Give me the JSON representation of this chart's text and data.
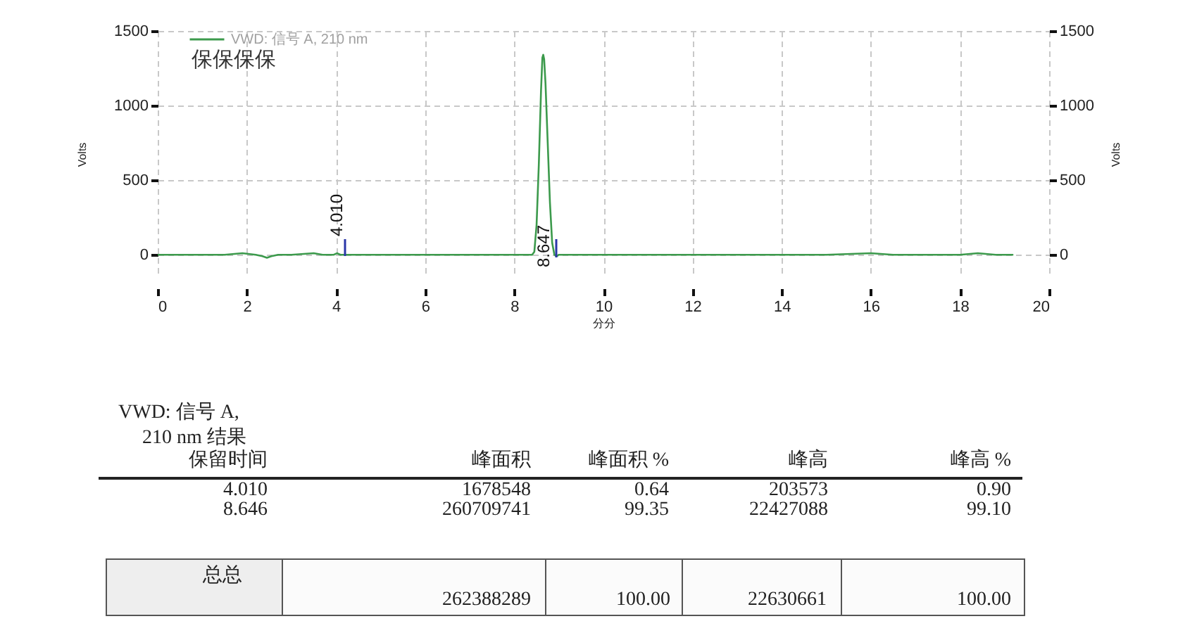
{
  "chart_data": {
    "type": "line",
    "xlabel": "分分",
    "ylabel": "Volts",
    "y2label": "Volts",
    "x": [
      0,
      0.5,
      1,
      1.5,
      1.9,
      2.2,
      2.35,
      2.45,
      2.55,
      2.7,
      3,
      3.5,
      3.7,
      3.95,
      4.02,
      4.1,
      4.5,
      5,
      6,
      7,
      8,
      8.3,
      8.4,
      8.45,
      8.5,
      8.55,
      8.6,
      8.63,
      8.65,
      8.67,
      8.7,
      8.75,
      8.8,
      8.85,
      8.9,
      8.95,
      9,
      9.5,
      10,
      11,
      12,
      13,
      14,
      15,
      16,
      16.5,
      17,
      17.5,
      18,
      18.4,
      18.8,
      19.18
    ],
    "series": [
      {
        "name": "VWD: 信号 A, 210 nm",
        "color": "#3c9a4c",
        "values": [
          0,
          0,
          0,
          0,
          10,
          0,
          -10,
          -20,
          -10,
          0,
          0,
          10,
          0,
          0,
          10,
          0,
          0,
          0,
          0,
          0,
          0,
          0,
          0,
          20,
          200,
          600,
          1100,
          1320,
          1340,
          1310,
          1150,
          750,
          350,
          80,
          0,
          -10,
          0,
          0,
          0,
          0,
          0,
          0,
          0,
          0,
          10,
          0,
          0,
          0,
          0,
          10,
          0,
          0
        ]
      }
    ],
    "xlim": [
      0,
      20
    ],
    "xticks": [
      0,
      2,
      4,
      6,
      8,
      10,
      12,
      14,
      16,
      18,
      20
    ],
    "ylim": [
      -150,
      1500
    ],
    "yticks": [
      0,
      500,
      1000,
      1500
    ],
    "y2lim": [
      -150,
      1500
    ],
    "y2ticks": [
      0,
      500,
      1000,
      1500
    ],
    "grid": true,
    "legend": "top left",
    "annotations": [
      "保保保保",
      "4.010",
      "8.647",
      "VWD: 信号 A, 210 nm 结果",
      "保留时间",
      "峰面积",
      "峰面积 %",
      "峰高",
      "峰高 %",
      "4.010",
      "1678548",
      "0.64",
      "203573",
      "0.90",
      "8.646",
      "260709741",
      "99.35",
      "22427088",
      "99.10",
      "总总",
      "262388289",
      "100.00",
      "22630661",
      "100.00"
    ]
  }
}
